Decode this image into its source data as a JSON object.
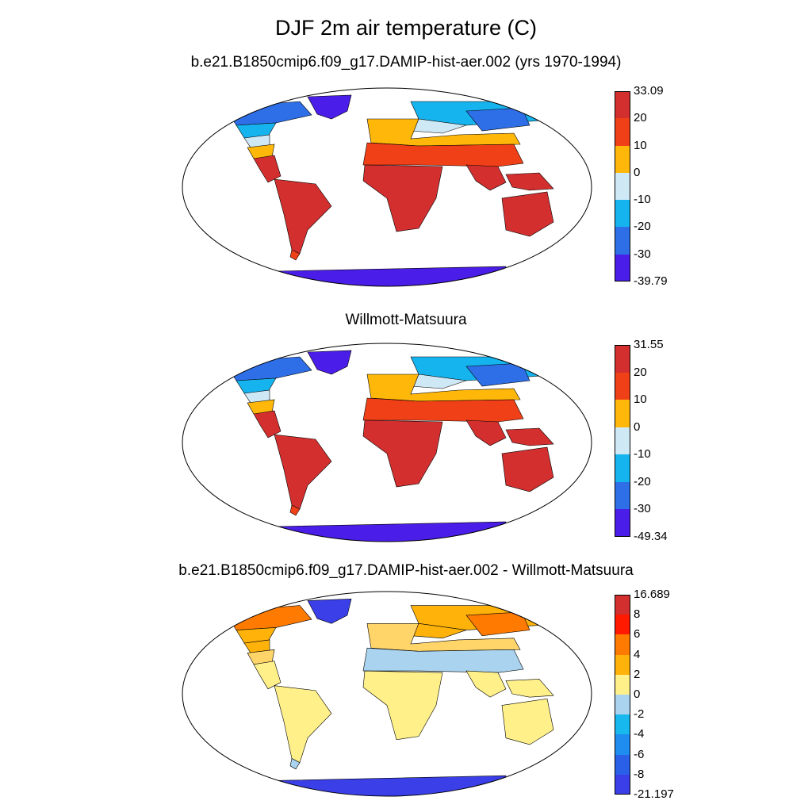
{
  "title": "DJF 2m air temperature (C)",
  "panels": [
    {
      "title": "b.e21.B1850cmip6.f09_g17.DAMIP-hist-aer.002 (yrs 1970-1994)",
      "colorbar": {
        "labels": [
          "33.09",
          "20",
          "10",
          "0",
          "-10",
          "-20",
          "-30",
          "-39.79"
        ],
        "colors": [
          "#d32f2f",
          "#f04018",
          "#ffb80a",
          "#cfe8f6",
          "#16b4ee",
          "#2e6fe8",
          "#4a1ee8"
        ]
      },
      "regions": {
        "tropics": "#d32f2f",
        "subtropics": "#f04018",
        "warm_temperate": "#ffb80a",
        "cool_temperate": "#cfe8f6",
        "cold": "#16b4ee",
        "polar": "#2e6fe8",
        "ice": "#4a1ee8"
      }
    },
    {
      "title": "Willmott-Matsuura",
      "colorbar": {
        "labels": [
          "31.55",
          "20",
          "10",
          "0",
          "-10",
          "-20",
          "-30",
          "-49.34"
        ],
        "colors": [
          "#d32f2f",
          "#f04018",
          "#ffb80a",
          "#cfe8f6",
          "#16b4ee",
          "#2e6fe8",
          "#4a1ee8"
        ]
      },
      "regions": {
        "tropics": "#d32f2f",
        "subtropics": "#f04018",
        "warm_temperate": "#ffb80a",
        "cool_temperate": "#cfe8f6",
        "cold": "#16b4ee",
        "polar": "#2e6fe8",
        "ice": "#4a1ee8"
      }
    },
    {
      "title": "b.e21.B1850cmip6.f09_g17.DAMIP-hist-aer.002 - Willmott-Matsuura",
      "colorbar": {
        "labels": [
          "16.689",
          "8",
          "6",
          "4",
          "2",
          "0",
          "-2",
          "-4",
          "-6",
          "-8",
          "-21.197"
        ],
        "colors": [
          "#d32f2f",
          "#ff1a00",
          "#ff7a00",
          "#ffb20a",
          "#fff08a",
          "#a9d3ef",
          "#17b8ee",
          "#1f8cef",
          "#2a5fe8",
          "#3a3fe8"
        ]
      },
      "regions": {
        "tropics": "#fff08a",
        "subtropics": "#a9d3ef",
        "warm_temperate": "#ffd56a",
        "cool_temperate": "#ffb20a",
        "cold": "#ffb20a",
        "polar": "#ff7a00",
        "ice": "#3a3fe8"
      }
    }
  ]
}
